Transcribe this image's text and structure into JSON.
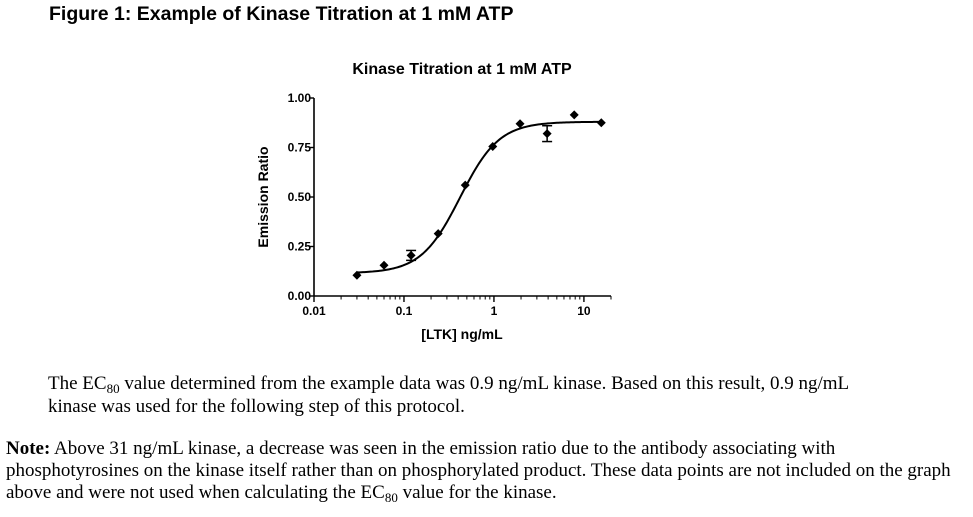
{
  "figure": {
    "title": "Figure 1: Example of Kinase Titration at 1 mM ATP"
  },
  "chart_data": {
    "type": "scatter",
    "title": "Kinase Titration at 1 mM ATP",
    "xlabel": "[LTK] ng/mL",
    "ylabel": "Emission Ratio",
    "x_scale": "log",
    "xlim": [
      0.01,
      20
    ],
    "ylim": [
      0,
      1.0
    ],
    "x_ticks": [
      {
        "value": 0.01,
        "label": "0.01"
      },
      {
        "value": 0.1,
        "label": "0.1"
      },
      {
        "value": 1,
        "label": "1"
      },
      {
        "value": 10,
        "label": "10"
      }
    ],
    "y_ticks": [
      {
        "value": 0,
        "label": "0.00"
      },
      {
        "value": 0.25,
        "label": "0.25"
      },
      {
        "value": 0.5,
        "label": "0.50"
      },
      {
        "value": 0.75,
        "label": "0.75"
      },
      {
        "value": 1.0,
        "label": "1.00"
      }
    ],
    "points": [
      {
        "x": 0.03,
        "y": 0.105,
        "err": 0
      },
      {
        "x": 0.06,
        "y": 0.155,
        "err": 0
      },
      {
        "x": 0.12,
        "y": 0.205,
        "err": 0.025
      },
      {
        "x": 0.24,
        "y": 0.315,
        "err": 0
      },
      {
        "x": 0.48,
        "y": 0.56,
        "err": 0
      },
      {
        "x": 0.97,
        "y": 0.755,
        "err": 0
      },
      {
        "x": 1.95,
        "y": 0.87,
        "err": 0
      },
      {
        "x": 3.9,
        "y": 0.82,
        "err": 0.04
      },
      {
        "x": 7.8,
        "y": 0.915,
        "err": 0
      },
      {
        "x": 15.6,
        "y": 0.875,
        "err": 0
      }
    ],
    "fit": {
      "type": "sigmoid",
      "bottom": 0.115,
      "top": 0.88,
      "ec50": 0.42,
      "hill": 2.0
    },
    "grid": false,
    "legend": "none",
    "color": "#000000"
  },
  "text": {
    "para1_a": "The EC",
    "para1_sub": "80",
    "para1_b": " value determined from the example data was 0.9 ng/mL kinase.  Based on this result, 0.9 ng/mL kinase was used for the following step of this protocol.",
    "note_label": "Note:",
    "note_a": " Above 31 ng/mL kinase, a decrease was seen in the emission ratio due to the antibody associating with phosphotyrosines on the kinase itself rather than on phosphorylated product. These data points are not included on the graph above and were not used when calculating the EC",
    "note_sub": "80",
    "note_b": " value for the kinase."
  }
}
